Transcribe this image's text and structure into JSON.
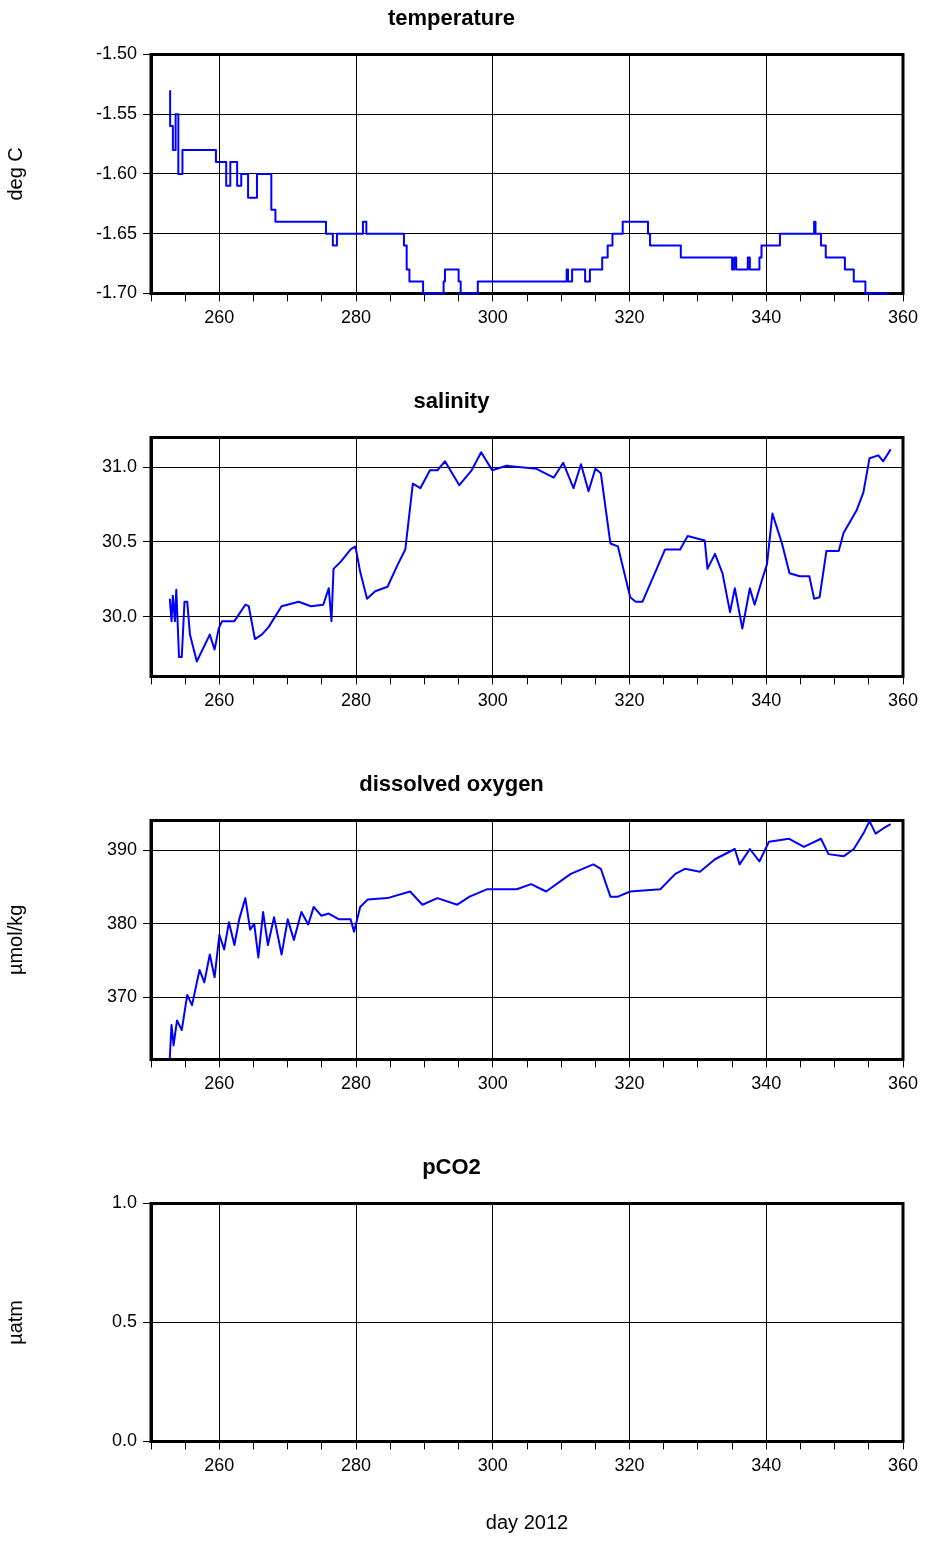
{
  "chart_data": [
    {
      "type": "step",
      "title": "temperature",
      "ylabel": "deg C",
      "color": "#0000ff",
      "grid": true,
      "xlim": [
        250,
        360
      ],
      "ylim": [
        -1.7,
        -1.5
      ],
      "xticks": [
        {
          "value": 250,
          "label": null
        },
        {
          "value": 255,
          "label": null
        },
        260,
        {
          "value": 265,
          "label": null
        },
        {
          "value": 270,
          "label": null
        },
        {
          "value": 275,
          "label": null
        },
        280,
        {
          "value": 285,
          "label": null
        },
        {
          "value": 290,
          "label": null
        },
        {
          "value": 295,
          "label": null
        },
        300,
        {
          "value": 305,
          "label": null
        },
        {
          "value": 310,
          "label": null
        },
        {
          "value": 315,
          "label": null
        },
        320,
        {
          "value": 325,
          "label": null
        },
        {
          "value": 330,
          "label": null
        },
        {
          "value": 335,
          "label": null
        },
        340,
        {
          "value": 345,
          "label": null
        },
        {
          "value": 350,
          "label": null
        },
        {
          "value": 355,
          "label": null
        },
        360
      ],
      "yticks": [
        {
          "value": -1.7,
          "label": "-1.70"
        },
        {
          "value": -1.65,
          "label": "-1.65"
        },
        {
          "value": -1.6,
          "label": "-1.60"
        },
        {
          "value": -1.55,
          "label": "-1.55"
        },
        {
          "value": -1.5,
          "label": "-1.50"
        }
      ],
      "x": [
        252.8,
        253.2,
        253.6,
        254.0,
        254.6,
        255.2,
        259.5,
        261.0,
        261.6,
        262.6,
        263.2,
        264.2,
        265.5,
        266.5,
        267.6,
        268.2,
        268.5,
        275.6,
        276.6,
        277.2,
        281.0,
        281.5,
        284.7,
        287.0,
        287.4,
        287.8,
        289.8,
        292.8,
        293.0,
        295.0,
        295.3,
        297.8,
        298.4,
        310.8,
        311.0,
        311.6,
        313.5,
        314.2,
        316.0,
        316.8,
        317.5,
        319.0,
        320.0,
        322.7,
        323.0,
        324.5,
        327.5,
        327.7,
        335.0,
        335.3,
        335.6,
        337.3,
        337.6,
        339.0,
        339.3,
        342.0,
        342.5,
        347.0,
        347.2,
        348.0,
        348.7,
        351.5,
        352.8,
        354.5,
        355.0,
        358.0
      ],
      "values": [
        -1.53,
        -1.56,
        -1.58,
        -1.55,
        -1.6,
        -1.58,
        -1.58,
        -1.59,
        -1.61,
        -1.59,
        -1.61,
        -1.6,
        -1.62,
        -1.6,
        -1.6,
        -1.63,
        -1.64,
        -1.64,
        -1.65,
        -1.66,
        -1.65,
        -1.64,
        -1.65,
        -1.65,
        -1.66,
        -1.68,
        -1.69,
        -1.7,
        -1.69,
        -1.68,
        -1.69,
        -1.7,
        -1.69,
        -1.69,
        -1.68,
        -1.69,
        -1.68,
        -1.69,
        -1.68,
        -1.67,
        -1.66,
        -1.65,
        -1.64,
        -1.64,
        -1.65,
        -1.66,
        -1.66,
        -1.67,
        -1.67,
        -1.68,
        -1.67,
        -1.68,
        -1.67,
        -1.68,
        -1.67,
        -1.66,
        -1.65,
        -1.65,
        -1.64,
        -1.65,
        -1.66,
        -1.67,
        -1.68,
        -1.69,
        -1.7,
        -1.7
      ]
    },
    {
      "type": "line",
      "title": "salinity",
      "color": "#0000ff",
      "grid": true,
      "xlim": [
        250,
        360
      ],
      "ylim": [
        29.6,
        31.2
      ],
      "xticks": [
        {
          "value": 250,
          "label": null
        },
        {
          "value": 255,
          "label": null
        },
        260,
        {
          "value": 265,
          "label": null
        },
        {
          "value": 270,
          "label": null
        },
        {
          "value": 275,
          "label": null
        },
        280,
        {
          "value": 285,
          "label": null
        },
        {
          "value": 290,
          "label": null
        },
        {
          "value": 295,
          "label": null
        },
        300,
        {
          "value": 305,
          "label": null
        },
        {
          "value": 310,
          "label": null
        },
        {
          "value": 315,
          "label": null
        },
        320,
        {
          "value": 325,
          "label": null
        },
        {
          "value": 330,
          "label": null
        },
        {
          "value": 335,
          "label": null
        },
        340,
        {
          "value": 345,
          "label": null
        },
        {
          "value": 350,
          "label": null
        },
        {
          "value": 355,
          "label": null
        },
        360
      ],
      "yticks": [
        {
          "value": 30,
          "label": "30.0"
        },
        {
          "value": 30.5,
          "label": "30.5"
        },
        {
          "value": 31,
          "label": "31.0"
        }
      ],
      "x": [
        252.75,
        253.0,
        253.2,
        253.5,
        253.7,
        254.1,
        254.5,
        254.9,
        255.3,
        255.7,
        256.7,
        258.6,
        259.3,
        259.9,
        260.4,
        262.2,
        263.8,
        264.3,
        265.2,
        266.2,
        267.2,
        269.1,
        271.6,
        273.4,
        275.2,
        276.0,
        276.4,
        276.7,
        277.8,
        279.2,
        279.9,
        280.6,
        281.6,
        282.8,
        284.6,
        286.0,
        287.2,
        288.3,
        289.4,
        290.8,
        291.9,
        293.0,
        295.1,
        296.9,
        298.3,
        299.9,
        302.0,
        306.4,
        308.9,
        310.3,
        311.8,
        312.9,
        314.0,
        315.0,
        315.8,
        317.2,
        318.3,
        320.1,
        320.9,
        321.9,
        325.2,
        327.4,
        328.5,
        331.0,
        331.4,
        332.5,
        333.6,
        334.7,
        335.4,
        336.5,
        337.6,
        338.3,
        339.4,
        340.1,
        340.9,
        342.3,
        343.4,
        344.9,
        346.3,
        347.0,
        347.8,
        348.8,
        350.6,
        351.3,
        353.2,
        354.2,
        355.1,
        356.4,
        357.1,
        358.2
      ],
      "values": [
        30.12,
        29.97,
        30.14,
        29.97,
        30.18,
        29.73,
        29.73,
        30.1,
        30.1,
        29.88,
        29.7,
        29.88,
        29.78,
        29.92,
        29.97,
        29.97,
        30.08,
        30.07,
        29.85,
        29.88,
        29.93,
        30.07,
        30.1,
        30.07,
        30.08,
        30.19,
        29.97,
        30.32,
        30.37,
        30.45,
        30.47,
        30.3,
        30.12,
        30.17,
        30.2,
        30.34,
        30.45,
        30.89,
        30.86,
        30.98,
        30.98,
        31.04,
        30.88,
        30.98,
        31.1,
        30.98,
        31.01,
        30.99,
        30.93,
        31.03,
        30.86,
        31.02,
        30.84,
        30.99,
        30.96,
        30.49,
        30.47,
        30.13,
        30.1,
        30.1,
        30.45,
        30.45,
        30.54,
        30.51,
        30.32,
        30.42,
        30.29,
        30.03,
        30.19,
        29.92,
        30.19,
        30.08,
        30.25,
        30.35,
        30.69,
        30.49,
        30.29,
        30.27,
        30.27,
        30.12,
        30.13,
        30.44,
        30.44,
        30.56,
        30.71,
        30.83,
        31.06,
        31.08,
        31.04,
        31.12
      ]
    },
    {
      "type": "line",
      "title": "dissolved oxygen",
      "ylabel": "µmol/kg",
      "color": "#0000ff",
      "grid": true,
      "xlim": [
        250,
        360
      ],
      "ylim": [
        361.5,
        394.1
      ],
      "xticks": [
        {
          "value": 250,
          "label": null
        },
        {
          "value": 255,
          "label": null
        },
        260,
        {
          "value": 265,
          "label": null
        },
        {
          "value": 270,
          "label": null
        },
        {
          "value": 275,
          "label": null
        },
        280,
        {
          "value": 285,
          "label": null
        },
        {
          "value": 290,
          "label": null
        },
        {
          "value": 295,
          "label": null
        },
        300,
        {
          "value": 305,
          "label": null
        },
        {
          "value": 310,
          "label": null
        },
        {
          "value": 315,
          "label": null
        },
        320,
        {
          "value": 325,
          "label": null
        },
        {
          "value": 330,
          "label": null
        },
        {
          "value": 335,
          "label": null
        },
        340,
        {
          "value": 345,
          "label": null
        },
        {
          "value": 350,
          "label": null
        },
        {
          "value": 355,
          "label": null
        },
        360
      ],
      "yticks": [
        370,
        380,
        390
      ],
      "x": [
        252.75,
        253.0,
        253.3,
        253.8,
        254.5,
        255.3,
        256.0,
        257.1,
        257.8,
        258.6,
        259.3,
        260.0,
        260.7,
        261.4,
        262.2,
        262.9,
        263.8,
        264.5,
        265.1,
        265.7,
        266.4,
        267.1,
        268.0,
        269.1,
        270.0,
        270.9,
        272.0,
        273.0,
        273.8,
        274.9,
        276.0,
        277.5,
        279.2,
        279.7,
        280.6,
        281.7,
        284.6,
        287.9,
        289.7,
        291.9,
        294.8,
        296.6,
        299.1,
        303.5,
        305.6,
        307.8,
        311.4,
        314.7,
        315.8,
        317.2,
        318.3,
        320.1,
        324.5,
        326.7,
        328.1,
        330.3,
        332.5,
        335.4,
        336.1,
        337.6,
        339.0,
        340.4,
        343.3,
        345.5,
        348.0,
        349.1,
        351.3,
        352.8,
        354.2,
        355.1,
        356.0,
        357.1,
        358.2
      ],
      "values": [
        361.7,
        366.2,
        363.4,
        366.8,
        365.5,
        370.3,
        368.9,
        373.7,
        372.0,
        375.8,
        372.7,
        378.5,
        376.5,
        380.2,
        377.1,
        380.6,
        383.5,
        379.2,
        380.0,
        375.4,
        381.6,
        377.1,
        380.9,
        375.8,
        380.6,
        377.8,
        381.6,
        379.9,
        382.3,
        381.1,
        381.4,
        380.6,
        380.6,
        378.9,
        382.3,
        383.3,
        383.5,
        384.4,
        382.6,
        383.5,
        382.6,
        383.7,
        384.7,
        384.7,
        385.4,
        384.4,
        386.8,
        388.1,
        387.5,
        383.7,
        383.7,
        384.4,
        384.7,
        386.8,
        387.5,
        387.1,
        388.8,
        390.2,
        388.1,
        390.2,
        388.5,
        391.2,
        391.6,
        390.5,
        391.6,
        389.5,
        389.2,
        390.2,
        392.3,
        394.0,
        392.3,
        393.0,
        393.6
      ]
    },
    {
      "type": "line",
      "title": "pCO2",
      "ylabel": "µatm",
      "xlabel": "day 2012",
      "grid": true,
      "xlim": [
        250,
        360
      ],
      "ylim": [
        0,
        1
      ],
      "xticks": [
        {
          "value": 250,
          "label": null
        },
        {
          "value": 255,
          "label": null
        },
        260,
        {
          "value": 265,
          "label": null
        },
        {
          "value": 270,
          "label": null
        },
        {
          "value": 275,
          "label": null
        },
        280,
        {
          "value": 285,
          "label": null
        },
        {
          "value": 290,
          "label": null
        },
        {
          "value": 295,
          "label": null
        },
        300,
        {
          "value": 305,
          "label": null
        },
        {
          "value": 310,
          "label": null
        },
        {
          "value": 315,
          "label": null
        },
        320,
        {
          "value": 325,
          "label": null
        },
        {
          "value": 330,
          "label": null
        },
        {
          "value": 335,
          "label": null
        },
        340,
        {
          "value": 345,
          "label": null
        },
        {
          "value": 350,
          "label": null
        },
        {
          "value": 355,
          "label": null
        },
        360
      ],
      "yticks": [
        {
          "value": 0,
          "label": "0.0"
        },
        {
          "value": 0.5,
          "label": "0.5"
        },
        {
          "value": 1,
          "label": "1.0"
        }
      ]
    }
  ]
}
